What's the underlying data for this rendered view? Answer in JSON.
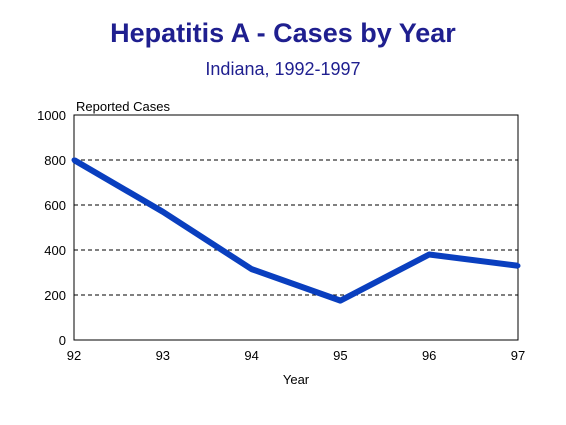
{
  "chart_data": {
    "type": "line",
    "title": "Hepatitis A - Cases by Year",
    "subtitle": "Indiana, 1992-1997",
    "ylabel": "Reported Cases",
    "xlabel": "Year",
    "x": [
      "92",
      "93",
      "94",
      "95",
      "96",
      "97"
    ],
    "series": [
      {
        "values": [
          800,
          570,
          315,
          175,
          380,
          330
        ]
      }
    ],
    "ylim": [
      0,
      1000
    ],
    "yticks": [
      "0",
      "200",
      "400",
      "600",
      "800",
      "1000"
    ],
    "grid": "horizontal dashed",
    "line_color": "#0a3fbf"
  }
}
